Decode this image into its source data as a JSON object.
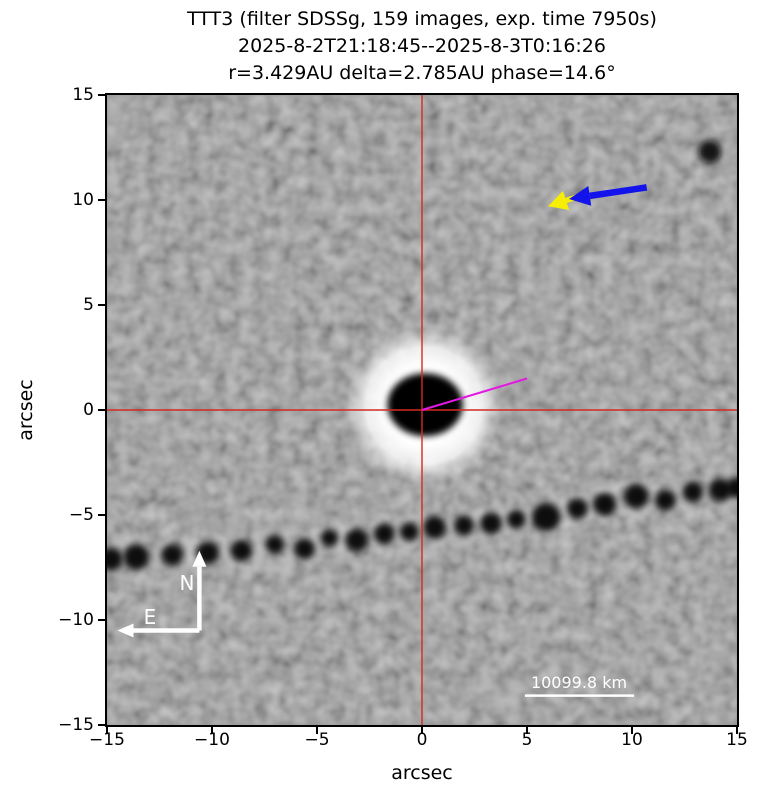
{
  "figure": {
    "title_lines": [
      "TTT3 (filter SDSSg, 159 images, exp. time 7950s)",
      "2025-8-2T21:18:45--2025-8-3T0:16:26",
      "r=3.429AU delta=2.785AU phase=14.6°"
    ],
    "xlabel": "arcsec",
    "ylabel": "arcsec",
    "x_tick_labels": [
      "−15",
      "−10",
      "−5",
      "0",
      "5",
      "10",
      "15"
    ],
    "y_tick_labels": [
      "15",
      "10",
      "5",
      "0",
      "−5",
      "−10",
      "−15"
    ],
    "compass": {
      "north_label": "N",
      "east_label": "E"
    },
    "scale_bar_label": "10099.8 km"
  },
  "chart_data": {
    "type": "heatmap",
    "title": "TTT3 (filter SDSSg, 159 images, exp. time 7950s)",
    "subtitle": "2025-8-2T21:18:45--2025-8-3T0:16:26",
    "subtitle2": "r=3.429AU delta=2.785AU phase=14.6°",
    "xlabel": "arcsec",
    "ylabel": "arcsec",
    "xlim": [
      -15,
      15
    ],
    "ylim": [
      -15,
      15
    ],
    "x_ticks": [
      -15,
      -10,
      -5,
      0,
      5,
      10,
      15
    ],
    "y_ticks": [
      -15,
      -10,
      -5,
      0,
      5,
      10,
      15
    ],
    "grid": false,
    "background_gray": "#949494",
    "features": {
      "target_coma": {
        "x": 0.1,
        "y": 0.2,
        "halo_radius_arcsec": 3.7,
        "core": {
          "x": 0.15,
          "y": 0.25,
          "rx": 1.8,
          "ry": 1.5
        }
      },
      "crosshair": {
        "x": 0,
        "y": 0,
        "color": "#d42a1e"
      },
      "orientation_line": {
        "color": "#e318e3",
        "from": [
          0,
          0
        ],
        "to": [
          5.0,
          1.5
        ],
        "width": 2
      },
      "arrows": [
        {
          "name": "blue-arrow",
          "color": "#1313ec",
          "from": [
            10.7,
            10.6
          ],
          "to": [
            7.0,
            10.05
          ],
          "shaft": 6.5,
          "head_l": 21,
          "head_w": 20
        },
        {
          "name": "yellow-arrow",
          "color": "#f6ef04",
          "from": [
            7.7,
            10.25
          ],
          "to": [
            6.0,
            9.7
          ],
          "shaft": 5.5,
          "head_l": 19,
          "head_w": 20
        }
      ],
      "compass": {
        "color": "#ffffff",
        "origin": [
          -10.6,
          -10.5
        ],
        "north_tip": [
          -10.6,
          -6.7
        ],
        "east_tip": [
          -14.5,
          -10.5
        ],
        "shaft": 4.5,
        "head_l": 16,
        "head_w": 14
      },
      "scale_bar": {
        "color": "#ffffff",
        "x_from": 4.9,
        "x_to": 10.1,
        "y": -13.6,
        "label": "10099.8 km"
      },
      "field_star": {
        "x": 13.7,
        "y": 12.3,
        "r_arcsec": 0.55
      },
      "star_trail": {
        "blobs": [
          [
            -14.8,
            -7.1,
            0.55
          ],
          [
            -13.6,
            -7.0,
            0.62
          ],
          [
            -11.9,
            -6.9,
            0.52
          ],
          [
            -10.2,
            -6.8,
            0.55
          ],
          [
            -8.6,
            -6.7,
            0.52
          ],
          [
            -7.0,
            -6.4,
            0.45
          ],
          [
            -5.6,
            -6.6,
            0.5
          ],
          [
            -4.4,
            -6.1,
            0.42
          ],
          [
            -3.1,
            -6.2,
            0.55
          ],
          [
            -1.8,
            -5.9,
            0.5
          ],
          [
            -0.6,
            -5.8,
            0.45
          ],
          [
            0.6,
            -5.6,
            0.55
          ],
          [
            2.0,
            -5.5,
            0.48
          ],
          [
            3.3,
            -5.4,
            0.52
          ],
          [
            4.5,
            -5.2,
            0.45
          ],
          [
            5.9,
            -5.1,
            0.68
          ],
          [
            7.4,
            -4.7,
            0.5
          ],
          [
            8.7,
            -4.5,
            0.55
          ],
          [
            10.2,
            -4.1,
            0.6
          ],
          [
            11.6,
            -4.3,
            0.5
          ],
          [
            12.9,
            -3.9,
            0.5
          ],
          [
            14.2,
            -3.8,
            0.55
          ],
          [
            15.0,
            -3.7,
            0.5
          ]
        ]
      }
    }
  }
}
